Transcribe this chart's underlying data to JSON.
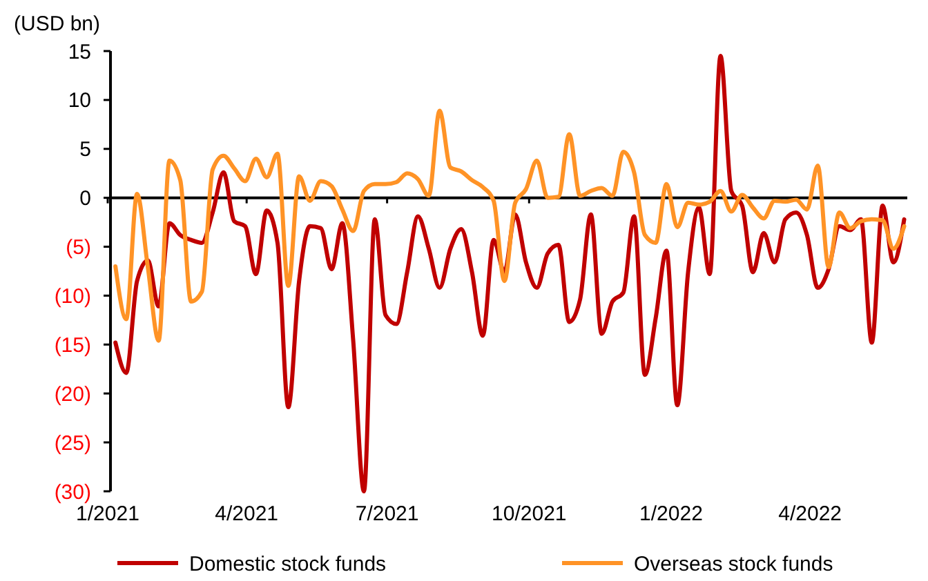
{
  "chart_data": {
    "type": "line",
    "ylabel": "(USD bn)",
    "x": [
      "2021-01-06",
      "2021-01-13",
      "2021-01-20",
      "2021-01-27",
      "2021-02-03",
      "2021-02-10",
      "2021-02-17",
      "2021-02-24",
      "2021-03-03",
      "2021-03-10",
      "2021-03-17",
      "2021-03-24",
      "2021-03-31",
      "2021-04-07",
      "2021-04-14",
      "2021-04-21",
      "2021-04-28",
      "2021-05-05",
      "2021-05-12",
      "2021-05-19",
      "2021-05-26",
      "2021-06-02",
      "2021-06-09",
      "2021-06-16",
      "2021-06-23",
      "2021-06-30",
      "2021-07-07",
      "2021-07-14",
      "2021-07-21",
      "2021-07-28",
      "2021-08-04",
      "2021-08-11",
      "2021-08-18",
      "2021-08-25",
      "2021-09-01",
      "2021-09-08",
      "2021-09-15",
      "2021-09-22",
      "2021-09-29",
      "2021-10-06",
      "2021-10-13",
      "2021-10-20",
      "2021-10-27",
      "2021-11-03",
      "2021-11-10",
      "2021-11-17",
      "2021-11-24",
      "2021-12-01",
      "2021-12-08",
      "2021-12-15",
      "2021-12-22",
      "2021-12-29",
      "2022-01-05",
      "2022-01-12",
      "2022-01-19",
      "2022-01-26",
      "2022-02-02",
      "2022-02-09",
      "2022-02-16",
      "2022-02-23",
      "2022-03-02",
      "2022-03-09",
      "2022-03-16",
      "2022-03-23",
      "2022-03-30",
      "2022-04-06",
      "2022-04-13",
      "2022-04-20",
      "2022-04-27",
      "2022-05-04",
      "2022-05-11",
      "2022-05-18",
      "2022-05-25",
      "2022-06-01"
    ],
    "series": [
      {
        "name": "Domestic stock funds",
        "color": "#c00000",
        "values": [
          -14.8,
          -17.9,
          -8.5,
          -6.4,
          -11.1,
          -2.6,
          -3.8,
          -4.3,
          -4.6,
          -1.5,
          2.6,
          -2.4,
          -2.9,
          -7.8,
          -1.3,
          -4.6,
          -21.4,
          -8.5,
          -2.9,
          -3.1,
          -7.3,
          -2.6,
          -14.5,
          -30,
          -2.2,
          -12.0,
          -12.9,
          -7.6,
          -1.9,
          -5.2,
          -9.2,
          -5.2,
          -3.2,
          -7.6,
          -14.1,
          -4.3,
          -7.6,
          -1.7,
          -6.6,
          -9.2,
          -5.7,
          -4.8,
          -12.7,
          -10.4,
          -1.7,
          -13.9,
          -10.6,
          -9.7,
          -1.9,
          -18.1,
          -12.3,
          -5.4,
          -21.2,
          -7.6,
          -1.0,
          -7.8,
          14.5,
          0.7,
          -0.8,
          -7.6,
          -3.6,
          -6.6,
          -2.2,
          -1.5,
          -3.8,
          -9.2,
          -7.3,
          -2.9,
          -3.3,
          -2.2,
          -14.8,
          -0.8,
          -6.6,
          -2.2
        ]
      },
      {
        "name": "Overseas stock funds",
        "color": "#ff9326",
        "values": [
          -7.0,
          -12.4,
          0.4,
          -7.1,
          -14.6,
          3.8,
          1.8,
          -10.6,
          -9.6,
          2.9,
          4.3,
          3.0,
          1.7,
          4.0,
          2.1,
          4.5,
          -9.0,
          2.2,
          -0.3,
          1.7,
          1.2,
          -1.2,
          -3.4,
          0.7,
          1.4,
          1.4,
          1.6,
          2.5,
          1.9,
          0.2,
          8.9,
          3.1,
          2.7,
          1.8,
          1.1,
          -0.3,
          -8.5,
          -0.5,
          0.9,
          3.8,
          0.0,
          0.1,
          6.5,
          0.2,
          0.7,
          1.0,
          0.2,
          4.7,
          2.6,
          -3.8,
          -4.6,
          1.4,
          -3.0,
          -0.5,
          -0.7,
          -0.4,
          0.7,
          -1.4,
          0.3,
          -1.0,
          -2.1,
          -0.3,
          -0.4,
          -0.2,
          -1.2,
          3.3,
          -7.1,
          -1.5,
          -3.1,
          -2.4,
          -2.2,
          -2.3,
          -5.2,
          -2.9
        ]
      }
    ],
    "xlim": [
      "2021-01-01",
      "2022-06-03"
    ],
    "xticks": [
      {
        "value": "2021-01-01",
        "label": "1/2021"
      },
      {
        "value": "2021-04-01",
        "label": "4/2021"
      },
      {
        "value": "2021-07-01",
        "label": "7/2021"
      },
      {
        "value": "2021-10-01",
        "label": "10/2021"
      },
      {
        "value": "2022-01-01",
        "label": "1/2022"
      },
      {
        "value": "2022-04-01",
        "label": "4/2022"
      }
    ],
    "ylim": [
      -30,
      15
    ],
    "yticks": [
      15,
      10,
      5,
      0,
      {
        "value": -5,
        "label": "(5)"
      },
      {
        "value": -10,
        "label": "(10)"
      },
      {
        "value": -15,
        "label": "(15)"
      },
      {
        "value": -20,
        "label": "(20)"
      },
      {
        "value": -25,
        "label": "(25)"
      },
      {
        "value": -30,
        "label": "(30)"
      }
    ],
    "legend": "bottom",
    "marker": "none",
    "line_style": "solid"
  }
}
